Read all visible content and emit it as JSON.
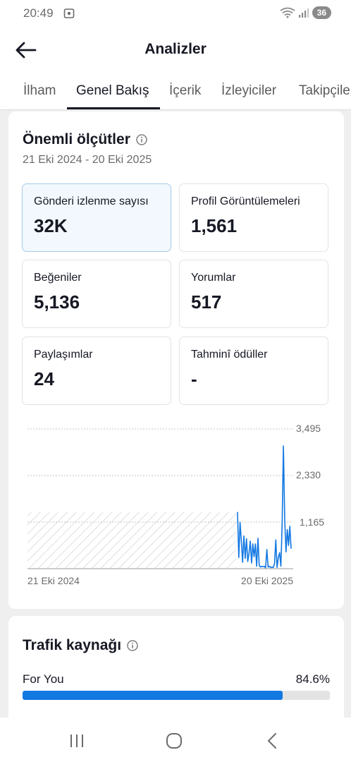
{
  "status_bar": {
    "time": "20:49",
    "battery": "36"
  },
  "header": {
    "title": "Analizler"
  },
  "tabs": [
    {
      "label": "İlham"
    },
    {
      "label": "Genel Bakış"
    },
    {
      "label": "İçerik"
    },
    {
      "label": "İzleyiciler"
    },
    {
      "label": "Takipçiler"
    }
  ],
  "metrics_card": {
    "title": "Önemli ölçütler",
    "date_range": "21 Eki 2024 - 20 Eki 2025",
    "metrics": [
      {
        "label": "Gönderi izlenme sayısı",
        "value": "32K"
      },
      {
        "label": "Profil Görüntülemeleri",
        "value": "1,561"
      },
      {
        "label": "Beğeniler",
        "value": "5,136"
      },
      {
        "label": "Yorumlar",
        "value": "517"
      },
      {
        "label": "Paylaşımlar",
        "value": "24"
      },
      {
        "label": "Tahminî ödüller",
        "value": "-"
      }
    ]
  },
  "chart_data": {
    "type": "line",
    "y_ticks": [
      "3,495",
      "2,330",
      "1,165"
    ],
    "ylim": [
      0,
      3495
    ],
    "x_tick_labels": [
      "21 Eki 2024",
      "20 Eki 2025"
    ],
    "no_data_region": "hatched",
    "series": [
      {
        "color": "#1278e2",
        "values": [
          1420,
          280,
          1160,
          700,
          160,
          820,
          260,
          750,
          180,
          380,
          690,
          140,
          620,
          300,
          620,
          60,
          760,
          80,
          40,
          60,
          50,
          60,
          20,
          480,
          40,
          60,
          30,
          40,
          30,
          120,
          720,
          30,
          280,
          400,
          60,
          1100,
          3070,
          1200,
          420,
          980,
          580,
          1060,
          500
        ]
      }
    ]
  },
  "traffic_card": {
    "title": "Trafik kaynağı",
    "source_label": "For You",
    "source_value": "84.6%",
    "source_percent": 84.6
  },
  "colors": {
    "accent": "#1278e2",
    "selected_bg": "#f2f8fd",
    "selected_border": "#a6cbe8"
  }
}
